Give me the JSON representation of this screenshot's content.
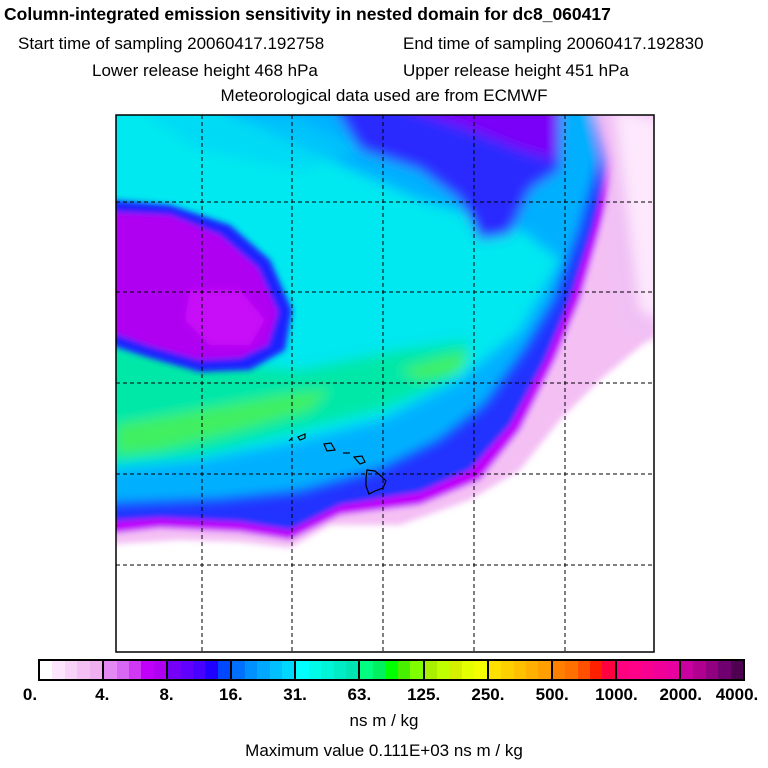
{
  "header": {
    "title": "Column-integrated emission sensitivity in nested domain for dc8_060417",
    "start_time": "Start time of sampling 20060417.192758",
    "end_time": "End time of sampling 20060417.192830",
    "lower_release": "Lower release height  468 hPa",
    "upper_release": "Upper release height  451 hPa",
    "met_data": "Meteorological data used are from ECMWF"
  },
  "chart_data": {
    "type": "heatmap",
    "title": "Column-integrated emission sensitivity in nested domain for dc8_060417",
    "colorbar": {
      "tick_labels": [
        "0.",
        "4.",
        "8.",
        "16.",
        "31.",
        "63.",
        "125.",
        "250.",
        "500.",
        "1000.",
        "2000.",
        "4000."
      ],
      "units": "ns m / kg",
      "colors": [
        [
          "#ffffff",
          "#fde6fd",
          "#f8d2f8",
          "#f4c0f4",
          "#f0b0f0"
        ],
        [
          "#e488f4",
          "#d868f4",
          "#d038f4",
          "#c000fa",
          "#b000f2"
        ],
        [
          "#7400f8",
          "#6000ff",
          "#4800ff",
          "#2000ff",
          "#0048ff"
        ],
        [
          "#0070ff",
          "#0090ff",
          "#00a8ff",
          "#00c0ff",
          "#00d8ff"
        ],
        [
          "#00ffff",
          "#00fce8",
          "#00f4d8",
          "#00ecc4",
          "#00e4b4"
        ],
        [
          "#00ff80",
          "#00f060",
          "#00ff00",
          "#48f000",
          "#80ff00"
        ],
        [
          "#a8f000",
          "#c0ff00",
          "#d4f000",
          "#e4ff00",
          "#f4ff00"
        ],
        [
          "#ffe000",
          "#ffd000",
          "#ffc000",
          "#ffb000",
          "#ffa000"
        ],
        [
          "#ff8000",
          "#ff7000",
          "#ff5000",
          "#ff2000",
          "#ff0040"
        ],
        [
          "#ff0080",
          "#ff0088",
          "#f80090",
          "#f00098",
          "#e800a0"
        ],
        [
          "#c800a0",
          "#b00090",
          "#900080",
          "#700070",
          "#500050"
        ]
      ]
    },
    "max_value": "Maximum value  0.111E+03 ns m / kg",
    "grid": true
  }
}
